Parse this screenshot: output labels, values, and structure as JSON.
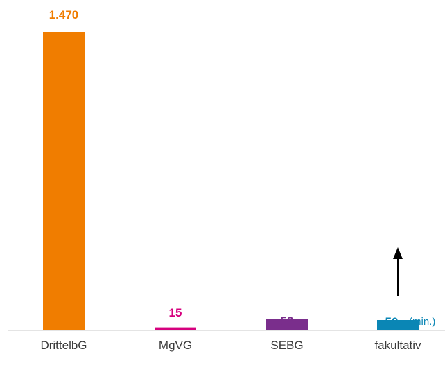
{
  "chart_data": {
    "type": "bar",
    "categories": [
      "DrittelbG",
      "MgVG",
      "SEBG",
      "fakultativ"
    ],
    "values": [
      1470,
      15,
      53,
      50
    ],
    "value_labels": [
      "1.470",
      "15",
      "53",
      "50"
    ],
    "colors": [
      "#f07d00",
      "#d6007e",
      "#7a2e8c",
      "#0a86b5"
    ],
    "annotation": {
      "category": "fakultativ",
      "text": "(min.)",
      "arrow": "up"
    },
    "ylim": [
      0,
      1470
    ],
    "grid": false,
    "legend": "none"
  }
}
